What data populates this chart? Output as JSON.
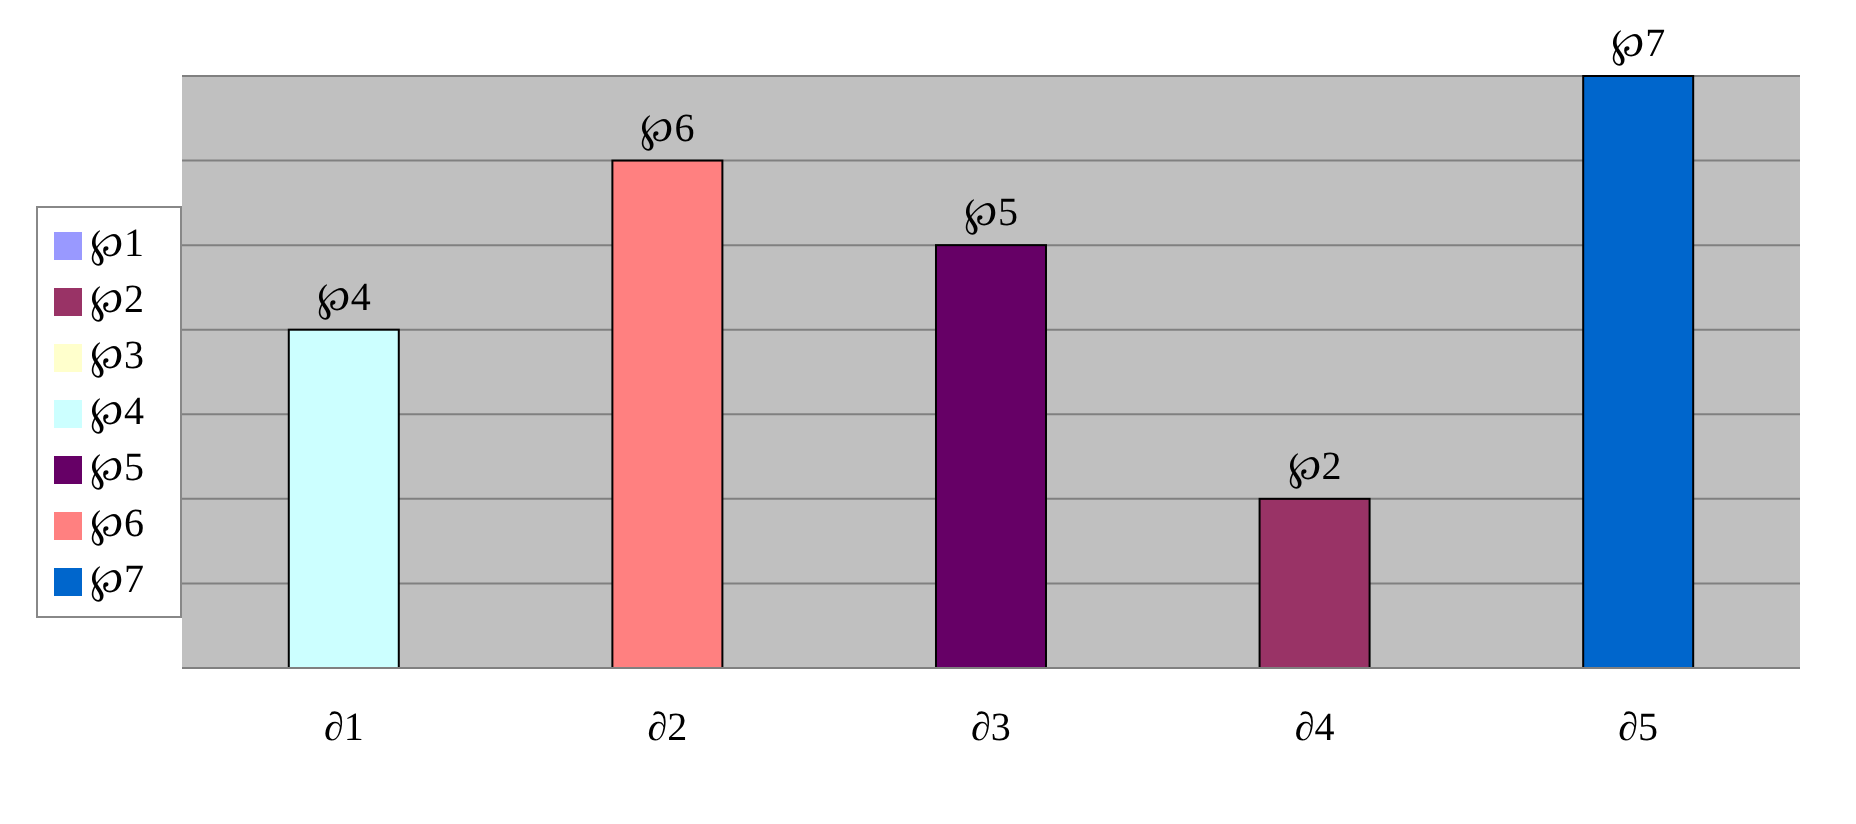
{
  "chart_data": {
    "type": "bar",
    "stacked": true,
    "grid": "y",
    "legend": "left",
    "tick_labels": "x",
    "ylim": [
      0,
      7
    ],
    "categories": [
      "∂1",
      "∂2",
      "∂3",
      "∂4",
      "∂5"
    ],
    "series": [
      {
        "name": "℘1",
        "color": "#9999ff",
        "values": [
          null,
          null,
          null,
          null,
          null
        ],
        "value_labels": [
          null,
          null,
          null,
          null,
          null
        ]
      },
      {
        "name": "℘2",
        "color": "#993366",
        "values": [
          null,
          null,
          null,
          2,
          null
        ],
        "value_labels": [
          null,
          null,
          null,
          "℘2",
          null
        ]
      },
      {
        "name": "℘3",
        "color": "#ffffcc",
        "values": [
          null,
          null,
          null,
          null,
          null
        ],
        "value_labels": [
          null,
          null,
          null,
          null,
          null
        ]
      },
      {
        "name": "℘4",
        "color": "#ccffff",
        "values": [
          4,
          null,
          null,
          null,
          null
        ],
        "value_labels": [
          "℘4",
          null,
          null,
          null,
          null
        ]
      },
      {
        "name": "℘5",
        "color": "#660066",
        "values": [
          null,
          null,
          5,
          null,
          null
        ],
        "value_labels": [
          null,
          null,
          "℘5",
          null,
          null
        ]
      },
      {
        "name": "℘6",
        "color": "#ff8080",
        "values": [
          null,
          6,
          null,
          null,
          null
        ],
        "value_labels": [
          null,
          "℘6",
          null,
          null,
          null
        ]
      },
      {
        "name": "℘7",
        "color": "#0066cc",
        "values": [
          null,
          null,
          null,
          null,
          7
        ],
        "value_labels": [
          null,
          null,
          null,
          null,
          "℘7"
        ]
      }
    ]
  }
}
